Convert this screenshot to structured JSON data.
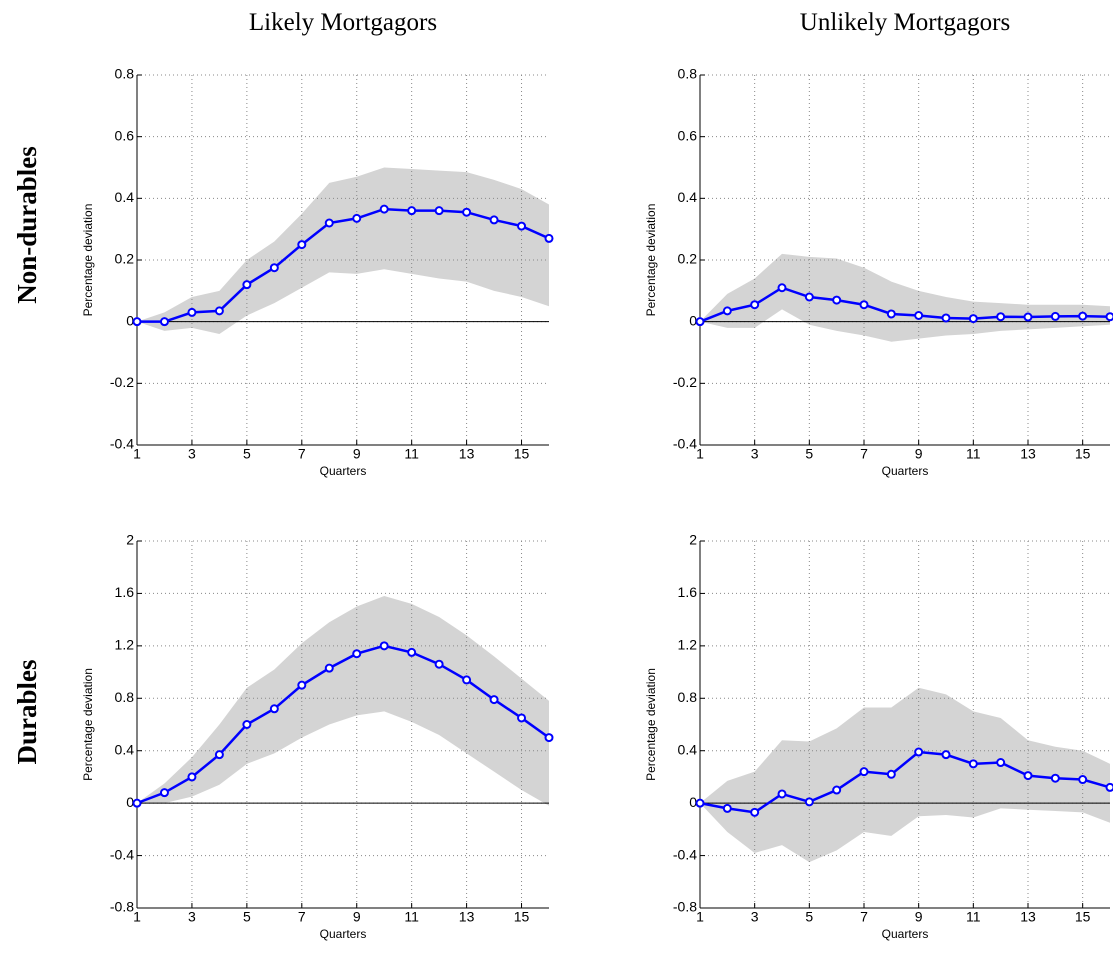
{
  "column_titles": [
    "Likely Mortgagors",
    "Unlikely Mortgagors"
  ],
  "row_titles": [
    "Non-durables",
    "Durables"
  ],
  "chart_data": [
    {
      "type": "line",
      "x": [
        1,
        2,
        3,
        4,
        5,
        6,
        7,
        8,
        9,
        10,
        11,
        12,
        13,
        14,
        15,
        16
      ],
      "values": [
        0,
        0,
        0.03,
        0.035,
        0.12,
        0.175,
        0.25,
        0.32,
        0.335,
        0.365,
        0.36,
        0.36,
        0.355,
        0.33,
        0.31,
        0.27
      ],
      "upper": [
        0,
        0.03,
        0.08,
        0.1,
        0.2,
        0.26,
        0.35,
        0.45,
        0.47,
        0.5,
        0.495,
        0.49,
        0.485,
        0.46,
        0.43,
        0.38
      ],
      "lower": [
        0,
        -0.03,
        -0.02,
        -0.04,
        0.02,
        0.06,
        0.11,
        0.16,
        0.155,
        0.17,
        0.155,
        0.14,
        0.13,
        0.1,
        0.08,
        0.05
      ],
      "color": "#0000ff",
      "band_color": "#d4d4d4",
      "xlim": [
        1,
        16
      ],
      "xticks": [
        1,
        3,
        5,
        7,
        9,
        11,
        13,
        15
      ],
      "ylim": [
        -0.4,
        0.8
      ],
      "yticks": [
        -0.4,
        -0.2,
        0,
        0.2,
        0.4,
        0.6,
        0.8
      ],
      "xlabel": "Quarters",
      "ylabel": "Percentage deviation",
      "grid": true
    },
    {
      "type": "line",
      "x": [
        1,
        2,
        3,
        4,
        5,
        6,
        7,
        8,
        9,
        10,
        11,
        12,
        13,
        14,
        15,
        16
      ],
      "values": [
        0,
        0.035,
        0.055,
        0.11,
        0.08,
        0.07,
        0.055,
        0.025,
        0.02,
        0.012,
        0.01,
        0.016,
        0.015,
        0.017,
        0.018,
        0.016
      ],
      "upper": [
        0,
        0.09,
        0.14,
        0.22,
        0.21,
        0.205,
        0.175,
        0.13,
        0.1,
        0.08,
        0.065,
        0.06,
        0.055,
        0.055,
        0.055,
        0.05
      ],
      "lower": [
        0,
        -0.02,
        -0.02,
        0.04,
        -0.01,
        -0.03,
        -0.045,
        -0.065,
        -0.055,
        -0.045,
        -0.04,
        -0.03,
        -0.025,
        -0.02,
        -0.015,
        -0.01
      ],
      "color": "#0000ff",
      "band_color": "#d4d4d4",
      "xlim": [
        1,
        16
      ],
      "xticks": [
        1,
        3,
        5,
        7,
        9,
        11,
        13,
        15
      ],
      "ylim": [
        -0.4,
        0.8
      ],
      "yticks": [
        -0.4,
        -0.2,
        0,
        0.2,
        0.4,
        0.6,
        0.8
      ],
      "xlabel": "Quarters",
      "ylabel": "Percentage deviation",
      "grid": true
    },
    {
      "type": "line",
      "x": [
        1,
        2,
        3,
        4,
        5,
        6,
        7,
        8,
        9,
        10,
        11,
        12,
        13,
        14,
        15,
        16
      ],
      "values": [
        0,
        0.08,
        0.2,
        0.37,
        0.6,
        0.72,
        0.9,
        1.03,
        1.14,
        1.2,
        1.15,
        1.06,
        0.94,
        0.79,
        0.65,
        0.5
      ],
      "upper": [
        0,
        0.15,
        0.35,
        0.6,
        0.88,
        1.02,
        1.22,
        1.38,
        1.5,
        1.58,
        1.52,
        1.42,
        1.28,
        1.12,
        0.95,
        0.78
      ],
      "lower": [
        0,
        0,
        0.05,
        0.14,
        0.3,
        0.38,
        0.5,
        0.6,
        0.67,
        0.7,
        0.62,
        0.52,
        0.38,
        0.24,
        0.1,
        -0.02
      ],
      "color": "#0000ff",
      "band_color": "#d4d4d4",
      "xlim": [
        1,
        16
      ],
      "xticks": [
        1,
        3,
        5,
        7,
        9,
        11,
        13,
        15
      ],
      "ylim": [
        -0.8,
        2
      ],
      "yticks": [
        -0.8,
        -0.4,
        0,
        0.4,
        0.8,
        1.2,
        1.6,
        2
      ],
      "xlabel": "Quarters",
      "ylabel": "Percentage deviation",
      "grid": true
    },
    {
      "type": "line",
      "x": [
        1,
        2,
        3,
        4,
        5,
        6,
        7,
        8,
        9,
        10,
        11,
        12,
        13,
        14,
        15,
        16
      ],
      "values": [
        0,
        -0.04,
        -0.07,
        0.07,
        0.01,
        0.1,
        0.24,
        0.22,
        0.39,
        0.37,
        0.3,
        0.31,
        0.21,
        0.19,
        0.18,
        0.12
      ],
      "upper": [
        0,
        0.17,
        0.24,
        0.48,
        0.47,
        0.57,
        0.73,
        0.73,
        0.88,
        0.83,
        0.7,
        0.65,
        0.48,
        0.43,
        0.4,
        0.3
      ],
      "lower": [
        0,
        -0.22,
        -0.38,
        -0.32,
        -0.45,
        -0.36,
        -0.22,
        -0.25,
        -0.1,
        -0.09,
        -0.11,
        -0.04,
        -0.05,
        -0.06,
        -0.07,
        -0.15
      ],
      "color": "#0000ff",
      "band_color": "#d4d4d4",
      "xlim": [
        1,
        16
      ],
      "xticks": [
        1,
        3,
        5,
        7,
        9,
        11,
        13,
        15
      ],
      "ylim": [
        -0.8,
        2
      ],
      "yticks": [
        -0.8,
        -0.4,
        0,
        0.4,
        0.8,
        1.2,
        1.6,
        2
      ],
      "xlabel": "Quarters",
      "ylabel": "Percentage deviation",
      "grid": true
    }
  ]
}
